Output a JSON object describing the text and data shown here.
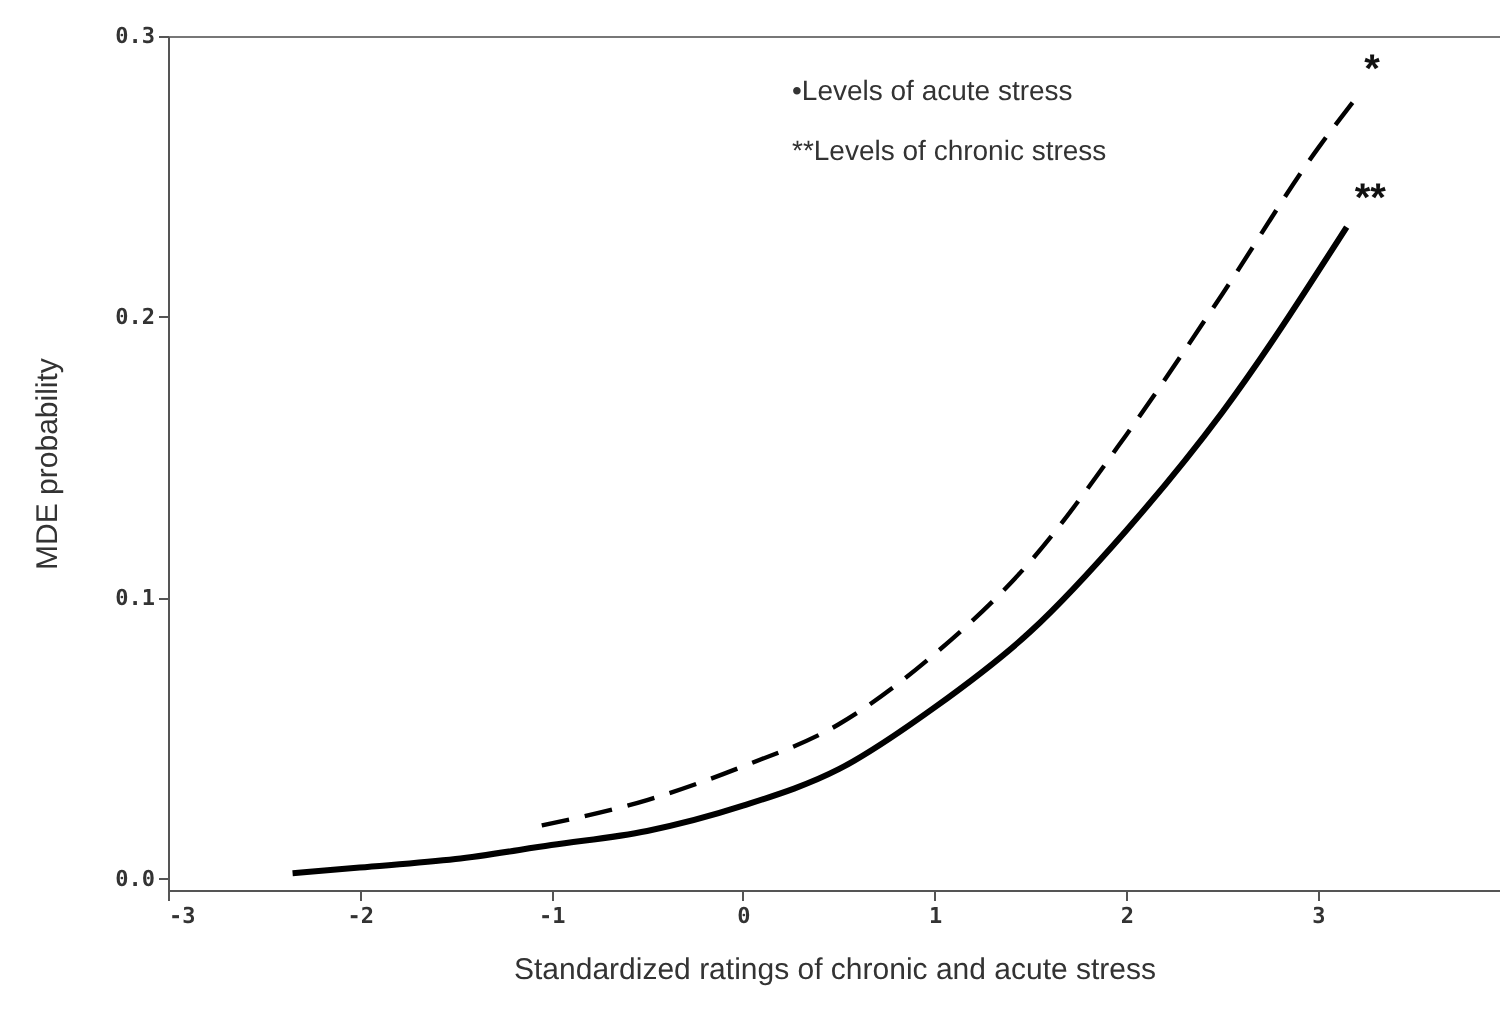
{
  "chart_data": {
    "type": "line",
    "xlabel": "Standardized ratings of chronic and acute stress",
    "ylabel": "MDE probability",
    "xlim": [
      -3,
      3.95
    ],
    "xticks": [
      -3,
      -2,
      -1,
      0,
      1,
      2,
      3
    ],
    "ylim": [
      -0.004,
      0.3
    ],
    "yticks": [
      {
        "value": 0,
        "label": "0.0"
      },
      0.1,
      0.2,
      0.3
    ],
    "grid": false,
    "series": [
      {
        "color": "#000000",
        "line_style": "dashed",
        "x": [
          -1.05,
          -0.5,
          0,
          0.5,
          1,
          1.5,
          2,
          2.5,
          3,
          3.2
        ],
        "values": [
          0.019,
          0.028,
          0.04,
          0.055,
          0.08,
          0.113,
          0.158,
          0.208,
          0.26,
          0.278
        ]
      },
      {
        "color": "#000000",
        "line_style": "solid",
        "x": [
          -2.35,
          -2,
          -1.5,
          -1,
          -0.5,
          0,
          0.5,
          1,
          1.5,
          2,
          2.5,
          3.15
        ],
        "values": [
          0.002,
          0.004,
          0.007,
          0.012,
          0.017,
          0.026,
          0.039,
          0.061,
          0.088,
          0.124,
          0.166,
          0.232
        ]
      }
    ],
    "annotations": [
      "•Levels of acute stress",
      "**Levels of chronic stress",
      "*",
      "**"
    ]
  }
}
